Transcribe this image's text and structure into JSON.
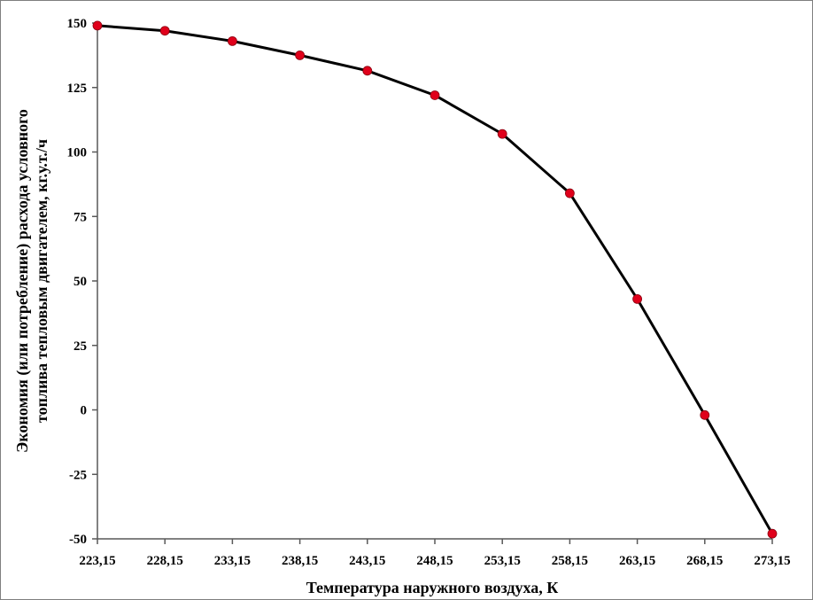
{
  "chart_data": {
    "type": "line",
    "xlabel": "Температура наружного воздуха, К",
    "ylabel_lines": [
      "Экономия (или потребление) расхода условного",
      "топлива тепловым двигателем, кг.у.т./ч"
    ],
    "x_tick_labels": [
      "223,15",
      "228,15",
      "233,15",
      "238,15",
      "243,15",
      "248,15",
      "253,15",
      "258,15",
      "263,15",
      "268,15",
      "273,15"
    ],
    "y_tick_labels": [
      "150",
      "125",
      "100",
      "75",
      "50",
      "25",
      "0",
      "-25",
      "-50"
    ],
    "y_ticks": [
      150,
      125,
      100,
      75,
      50,
      25,
      0,
      -25,
      -50
    ],
    "ylim": [
      -50,
      150
    ],
    "x": [
      223.15,
      228.15,
      233.15,
      238.15,
      243.15,
      248.15,
      253.15,
      258.15,
      263.15,
      268.15,
      273.15
    ],
    "series": [
      {
        "values": [
          149,
          147,
          143,
          137.5,
          131.5,
          122,
          107,
          84,
          43,
          -2,
          -48
        ]
      }
    ],
    "grid": false,
    "line_color": "#000000",
    "marker_color": "#e0001b"
  }
}
